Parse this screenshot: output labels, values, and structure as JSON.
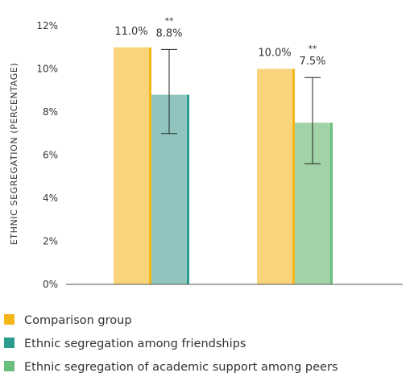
{
  "chart_data": {
    "type": "bar",
    "ylabel": "ETHNIC SEGREGATION (PERCENTAGE)",
    "ylim": [
      0,
      12
    ],
    "y_ticks": [
      0,
      2,
      4,
      6,
      8,
      10,
      12
    ],
    "y_tick_format": "%",
    "grid": false,
    "legend_position": "bottom-left",
    "groups": [
      {
        "bars": [
          {
            "series": "Comparison group",
            "value": 11.0,
            "label": "11.0%",
            "significance": ""
          },
          {
            "series": "Ethnic segregation among friendships",
            "value": 8.8,
            "label": "8.8%",
            "significance": "**",
            "error": [
              7.0,
              10.9
            ]
          }
        ]
      },
      {
        "bars": [
          {
            "series": "Comparison group",
            "value": 10.0,
            "label": "10.0%",
            "significance": ""
          },
          {
            "series": "Ethnic segregation of academic support among peers",
            "value": 7.5,
            "label": "7.5%",
            "significance": "**",
            "error": [
              5.6,
              9.6
            ]
          }
        ]
      }
    ],
    "legend": [
      {
        "name": "Comparison group",
        "color": "#f5b619",
        "face": "#f9d47b"
      },
      {
        "name": "Ethnic segregation among friendships",
        "color": "#2a9d8f",
        "face": "#8fc5be"
      },
      {
        "name": "Ethnic segregation of academic support among peers",
        "color": "#6bbf7d",
        "face": "#a2d3a8"
      }
    ]
  }
}
